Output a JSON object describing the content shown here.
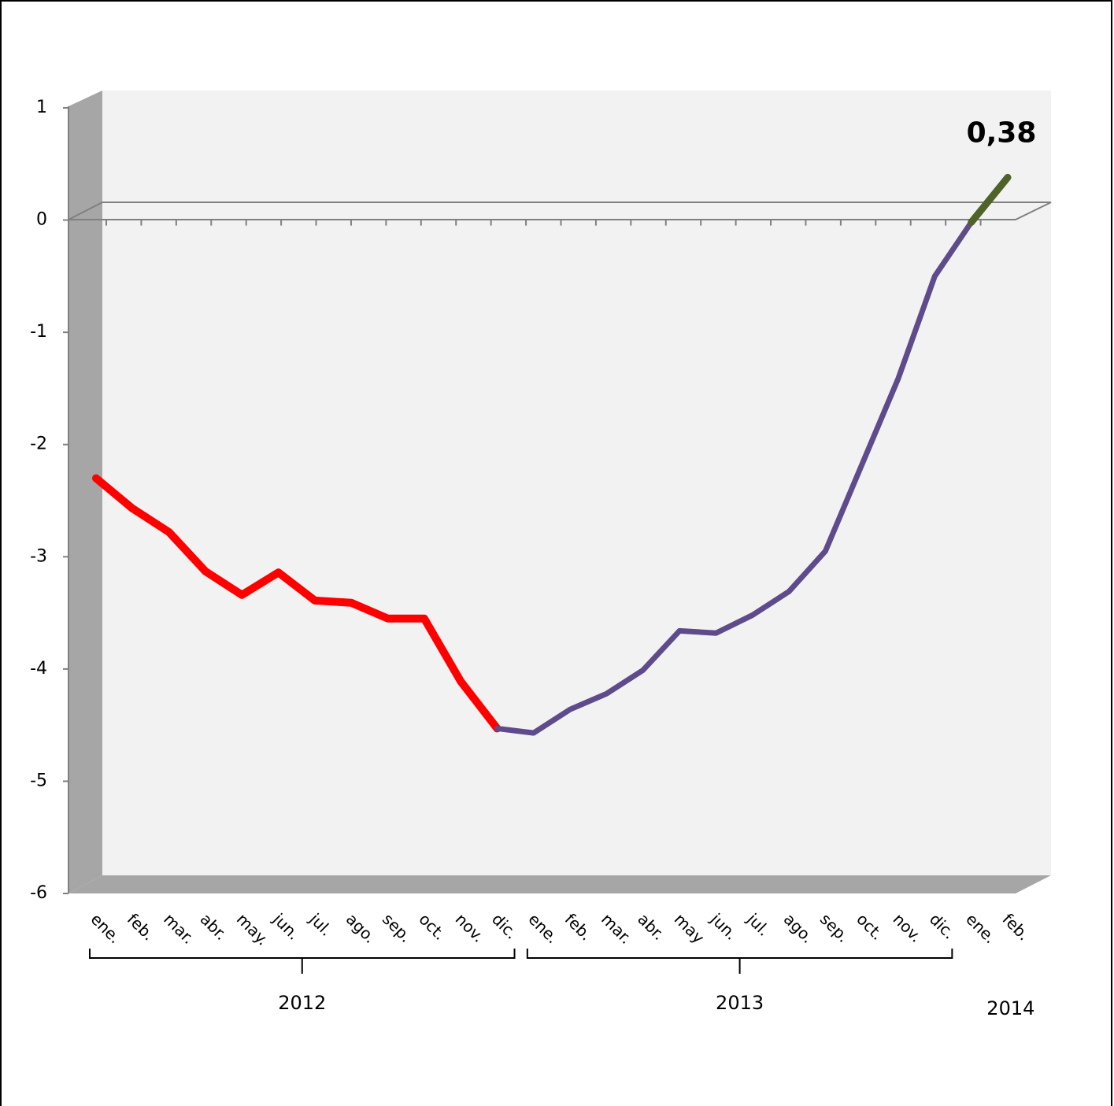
{
  "chart_data": {
    "type": "line",
    "categories": [
      "ene.",
      "feb.",
      "mar.",
      "abr.",
      "may.",
      "jun.",
      "jul.",
      "ago.",
      "sep.",
      "oct.",
      "nov.",
      "dic.",
      "ene.",
      "feb.",
      "mar.",
      "abr.",
      "may",
      "jun.",
      "jul.",
      "ago.",
      "sep.",
      "oct.",
      "nov.",
      "dic.",
      "ene.",
      "feb."
    ],
    "groups": [
      {
        "label": "2012",
        "count": 12,
        "brace": true
      },
      {
        "label": "2013",
        "count": 12,
        "brace": true
      },
      {
        "label": "2014",
        "count": 2,
        "brace": false
      }
    ],
    "series": [
      {
        "color": "#ff0000",
        "width": 10,
        "values": [
          -2.3,
          -2.57,
          -2.78,
          -3.13,
          -3.34,
          -3.14,
          -3.39,
          -3.41,
          -3.55,
          -3.55,
          -4.11,
          -4.53,
          null,
          null,
          null,
          null,
          null,
          null,
          null,
          null,
          null,
          null,
          null,
          null,
          null,
          null
        ]
      },
      {
        "color": "#5f4b8b",
        "width": 7,
        "values": [
          null,
          null,
          null,
          null,
          null,
          null,
          null,
          null,
          null,
          null,
          null,
          -4.53,
          -4.57,
          -4.36,
          -4.22,
          -4.01,
          -3.66,
          -3.68,
          -3.52,
          -3.31,
          -2.95,
          -2.18,
          -1.41,
          -0.5,
          -0.02,
          null
        ]
      },
      {
        "color": "#4f6228",
        "width": 9,
        "values": [
          null,
          null,
          null,
          null,
          null,
          null,
          null,
          null,
          null,
          null,
          null,
          null,
          null,
          null,
          null,
          null,
          null,
          null,
          null,
          null,
          null,
          null,
          null,
          null,
          -0.02,
          0.38
        ],
        "value_labels": [
          null,
          null,
          null,
          null,
          null,
          null,
          null,
          null,
          null,
          null,
          null,
          null,
          null,
          null,
          null,
          null,
          null,
          null,
          null,
          null,
          null,
          null,
          null,
          null,
          null,
          "0,38"
        ]
      }
    ],
    "ylim": [
      -6,
      1
    ],
    "yticks": [
      -6,
      -5,
      -4,
      -3,
      -2,
      -1,
      0,
      1
    ],
    "grid": false
  }
}
